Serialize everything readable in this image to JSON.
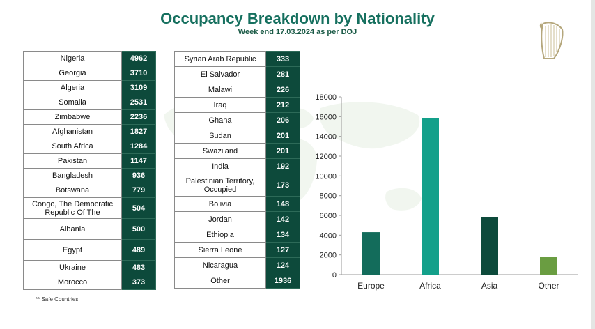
{
  "header": {
    "title": "Occupancy Breakdown by Nationality",
    "subtitle": "Week end 17.03.2024 as per DOJ"
  },
  "table_left": [
    {
      "name": "Nigeria",
      "value": "4962"
    },
    {
      "name": "Georgia",
      "value": "3710"
    },
    {
      "name": "Algeria",
      "value": "3109"
    },
    {
      "name": "Somalia",
      "value": "2531"
    },
    {
      "name": "Zimbabwe",
      "value": "2236"
    },
    {
      "name": "Afghanistan",
      "value": "1827"
    },
    {
      "name": "South Africa",
      "value": "1284"
    },
    {
      "name": "Pakistan",
      "value": "1147"
    },
    {
      "name": "Bangladesh",
      "value": "936"
    },
    {
      "name": "Botswana",
      "value": "779"
    },
    {
      "name": "Congo, The Democratic Republic Of The",
      "value": "504"
    },
    {
      "name": "Albania",
      "value": "500"
    },
    {
      "name": "Egypt",
      "value": "489"
    },
    {
      "name": "Ukraine",
      "value": "483"
    },
    {
      "name": "Morocco",
      "value": "373"
    }
  ],
  "table_right": [
    {
      "name": "Syrian Arab Republic",
      "value": "333"
    },
    {
      "name": "El Salvador",
      "value": "281"
    },
    {
      "name": "Malawi",
      "value": "226"
    },
    {
      "name": "Iraq",
      "value": "212"
    },
    {
      "name": "Ghana",
      "value": "206"
    },
    {
      "name": "Sudan",
      "value": "201"
    },
    {
      "name": "Swaziland",
      "value": "201"
    },
    {
      "name": "India",
      "value": "192"
    },
    {
      "name": "Palestinian Territory, Occupied",
      "value": "173"
    },
    {
      "name": "Bolivia",
      "value": "148"
    },
    {
      "name": "Jordan",
      "value": "142"
    },
    {
      "name": "Ethiopia",
      "value": "134"
    },
    {
      "name": "Sierra Leone",
      "value": "127"
    },
    {
      "name": "Nicaragua",
      "value": "124"
    },
    {
      "name": "Other",
      "value": "1936"
    }
  ],
  "footnote": "** Safe Countries",
  "colors": {
    "title": "#16705f",
    "table_value_bg": "#0d4a3b",
    "map": "#e6efe3"
  },
  "chart_data": {
    "type": "bar",
    "categories": [
      "Europe",
      "Africa",
      "Asia",
      "Other"
    ],
    "values": [
      4300,
      15850,
      5850,
      1800
    ],
    "colors": [
      "#136c5b",
      "#13a08a",
      "#0d4a3b",
      "#6a9d41"
    ],
    "ylim": [
      0,
      18000
    ],
    "yticks": [
      0,
      2000,
      4000,
      6000,
      8000,
      10000,
      12000,
      14000,
      16000,
      18000
    ],
    "grid": false,
    "legend": "none",
    "title": "",
    "xlabel": "",
    "ylabel": ""
  }
}
